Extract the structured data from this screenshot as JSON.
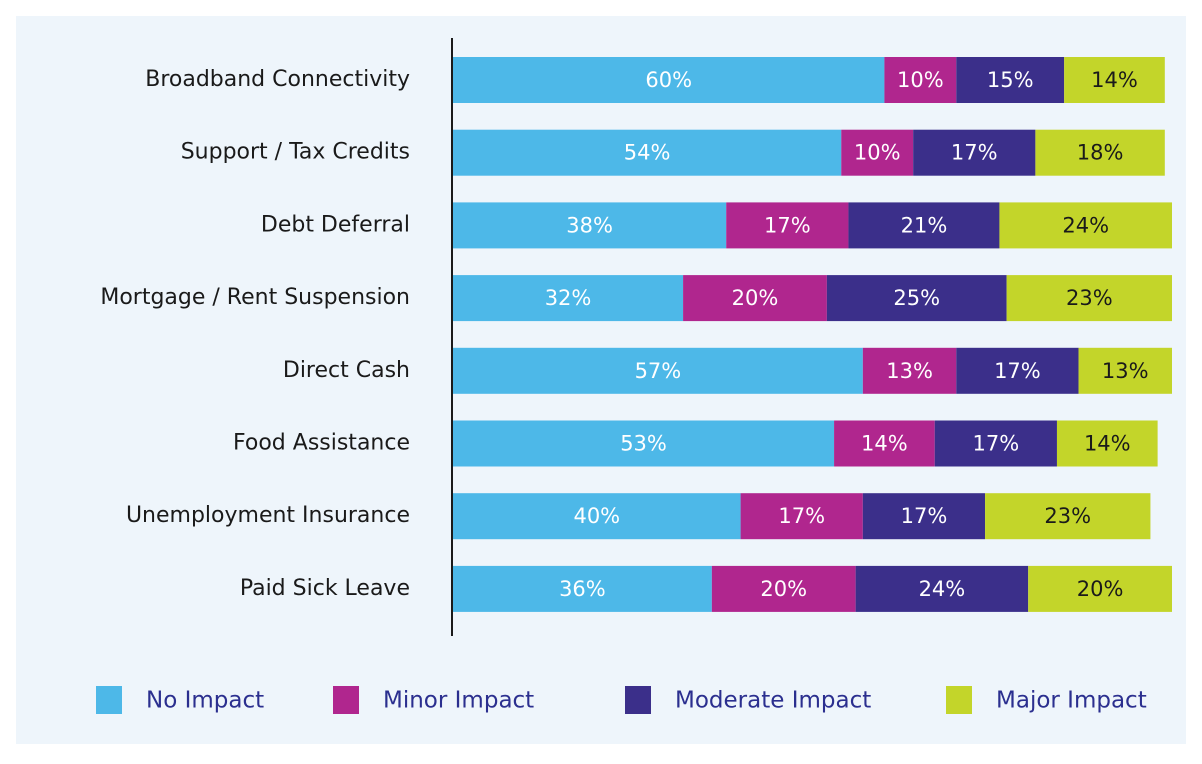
{
  "chart_data": {
    "type": "stacked-bar-horizontal",
    "categories": [
      "Broadband Connectivity",
      "Support / Tax Credits",
      "Debt Deferral",
      "Mortgage / Rent Suspension",
      "Direct Cash",
      "Food Assistance",
      "Unemployment Insurance",
      "Paid Sick Leave"
    ],
    "xlim": [
      0,
      100
    ],
    "series": [
      {
        "name": "No Impact",
        "color": "#4db8e8",
        "label_color": "#ffffff",
        "values": [
          60,
          54,
          38,
          32,
          57,
          53,
          40,
          36
        ],
        "value_labels": [
          "60%",
          "54%",
          "38%",
          "32%",
          "57%",
          "53%",
          "40%",
          "36%"
        ]
      },
      {
        "name": "Minor Impact",
        "color": "#b0268e",
        "label_color": "#ffffff",
        "values": [
          10,
          10,
          17,
          20,
          13,
          14,
          17,
          20
        ],
        "value_labels": [
          "10%",
          "10%",
          "17%",
          "20%",
          "13%",
          "14%",
          "17%",
          "20%"
        ]
      },
      {
        "name": "Moderate Impact",
        "color": "#3b2f8a",
        "label_color": "#ffffff",
        "values": [
          15,
          17,
          21,
          25,
          17,
          17,
          17,
          24
        ],
        "value_labels": [
          "15%",
          "17%",
          "21%",
          "25%",
          "17%",
          "17%",
          "17%",
          "24%"
        ]
      },
      {
        "name": "Major Impact",
        "color": "#c3d52a",
        "label_color": "#1a1a1a",
        "values": [
          14,
          18,
          24,
          23,
          13,
          14,
          23,
          20
        ],
        "value_labels": [
          "14%",
          "18%",
          "24%",
          "23%",
          "13%",
          "14%",
          "23%",
          "20%"
        ]
      }
    ]
  }
}
